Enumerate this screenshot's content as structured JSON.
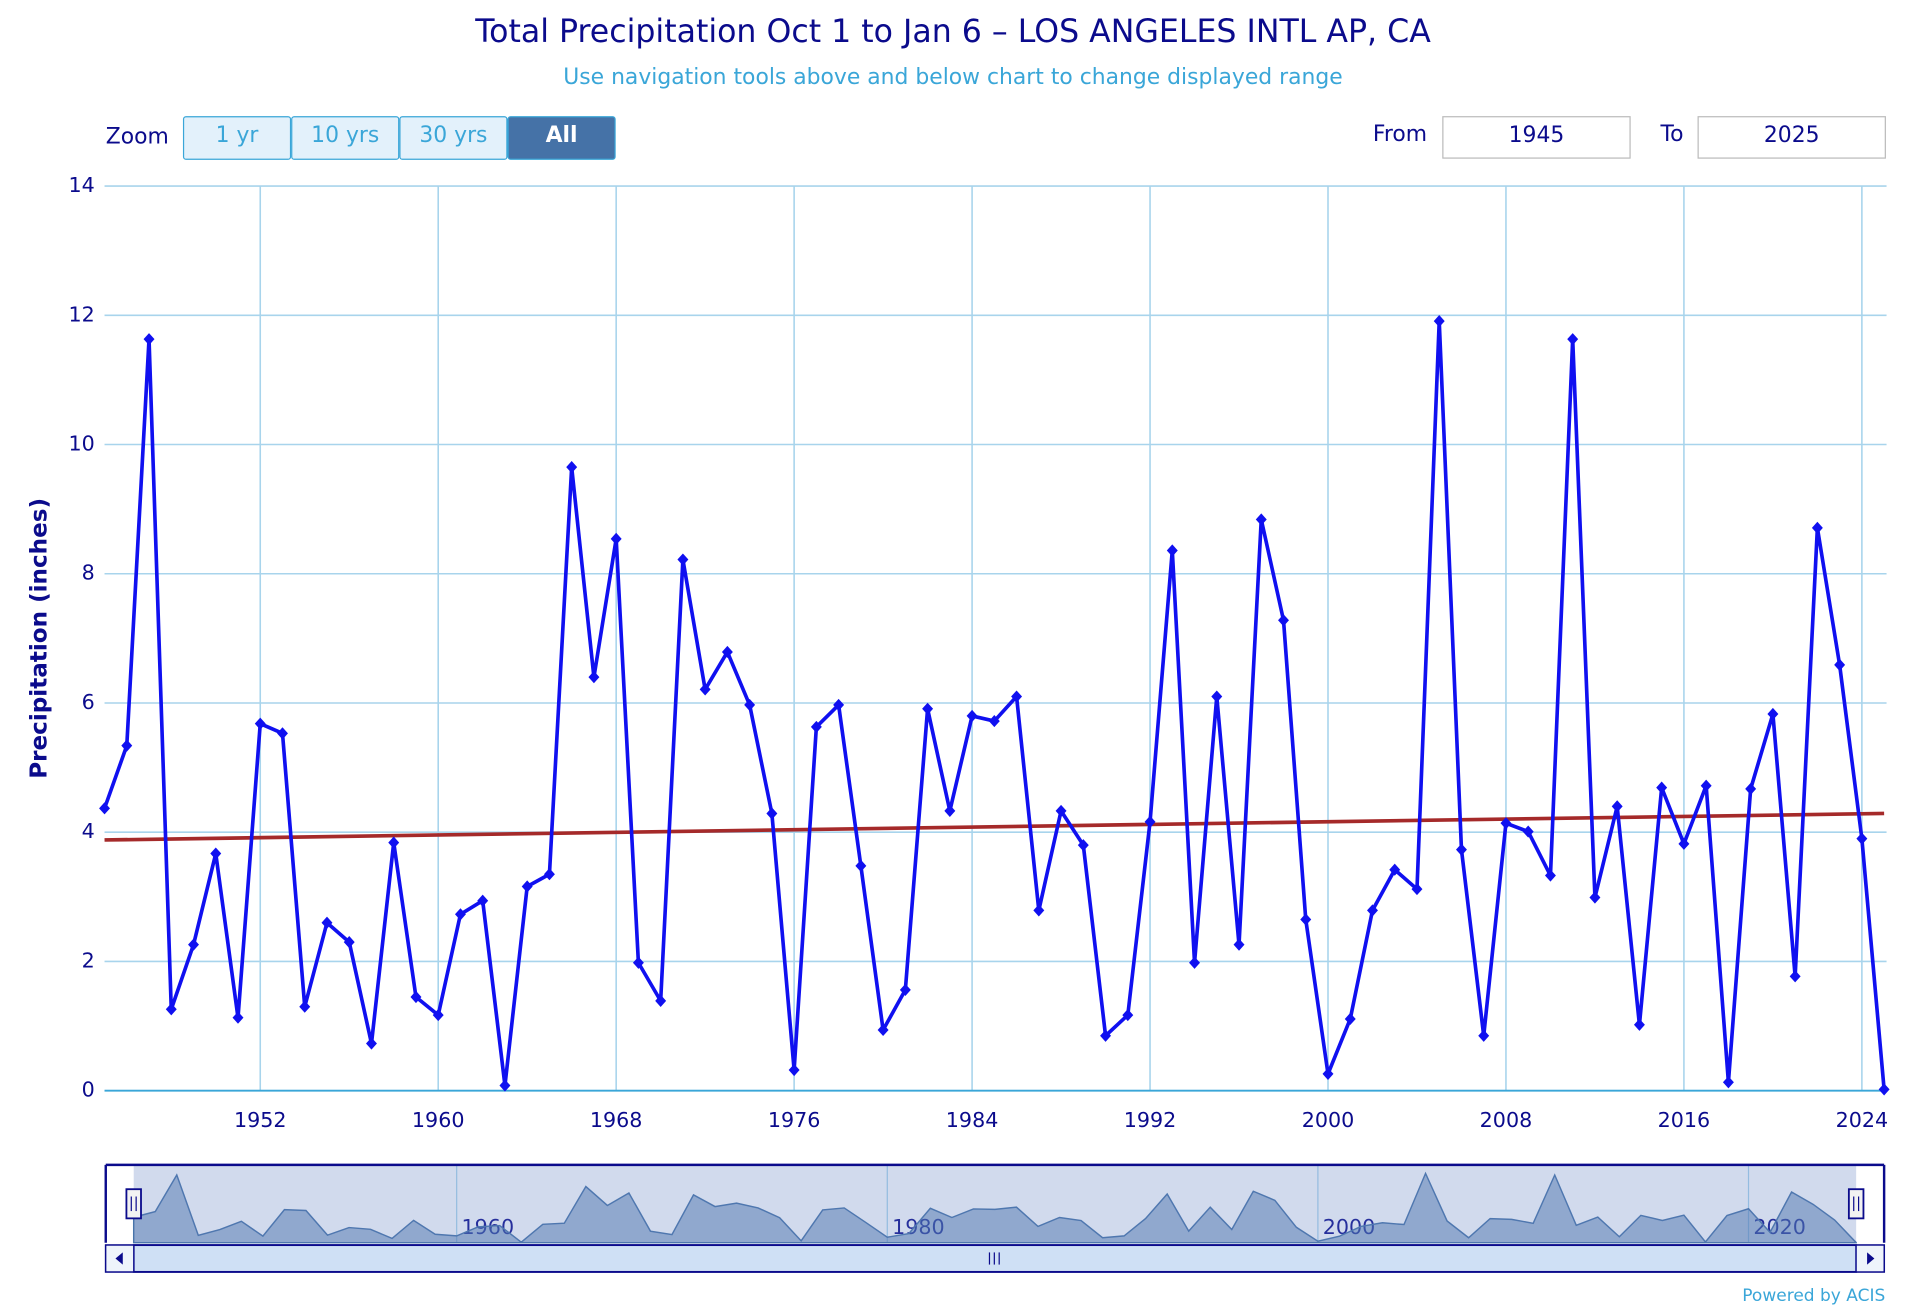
{
  "chart_data": {
    "type": "line",
    "title": "Total Precipitation Oct 1 to Jan 6 – LOS ANGELES INTL AP, CA",
    "subtitle": "Use navigation tools above and below chart to change displayed range",
    "y_label": "Precipitation (inches)",
    "x": [
      1945,
      1946,
      1947,
      1948,
      1949,
      1950,
      1951,
      1952,
      1953,
      1954,
      1955,
      1956,
      1957,
      1958,
      1959,
      1960,
      1961,
      1962,
      1963,
      1964,
      1965,
      1966,
      1967,
      1968,
      1969,
      1970,
      1971,
      1972,
      1973,
      1974,
      1975,
      1976,
      1977,
      1978,
      1979,
      1980,
      1981,
      1982,
      1983,
      1984,
      1985,
      1986,
      1987,
      1988,
      1989,
      1990,
      1991,
      1992,
      1993,
      1994,
      1995,
      1996,
      1997,
      1998,
      1999,
      2000,
      2001,
      2002,
      2003,
      2004,
      2005,
      2006,
      2007,
      2008,
      2009,
      2010,
      2011,
      2012,
      2013,
      2014,
      2015,
      2016,
      2017,
      2018,
      2019,
      2020,
      2021,
      2022,
      2023,
      2024,
      2025
    ],
    "series": [
      {
        "color": "#1010f0",
        "values": [
          4.37,
          5.34,
          11.63,
          1.26,
          2.26,
          3.67,
          1.13,
          5.68,
          5.53,
          1.3,
          2.6,
          2.3,
          0.73,
          3.84,
          1.45,
          1.17,
          2.73,
          2.94,
          0.08,
          3.16,
          3.35,
          9.65,
          6.4,
          8.54,
          1.98,
          1.39,
          8.22,
          6.21,
          6.79,
          5.97,
          4.29,
          0.32,
          5.63,
          5.97,
          3.48,
          0.94,
          1.56,
          5.91,
          4.33,
          5.8,
          5.72,
          6.1,
          2.79,
          4.33,
          3.8,
          0.85,
          1.17,
          4.16,
          8.36,
          1.98,
          6.1,
          2.26,
          8.84,
          7.28,
          2.65,
          0.26,
          1.11,
          2.79,
          3.42,
          3.12,
          11.91,
          3.73,
          0.85,
          4.14,
          4.01,
          3.33,
          11.63,
          2.99,
          4.4,
          1.02,
          4.69,
          3.82,
          4.72,
          0.13,
          4.67,
          5.83,
          1.77,
          8.71,
          6.59,
          3.9,
          0.02
        ]
      }
    ],
    "trend": {
      "color": "#a52a2a",
      "x": [
        1945,
        2025
      ],
      "values": [
        3.88,
        4.29
      ]
    },
    "xlim": [
      1945,
      2025
    ],
    "xticks": [
      1952,
      1960,
      1968,
      1976,
      1984,
      1992,
      2000,
      2008,
      2016,
      2024
    ],
    "ylim": [
      0,
      14
    ],
    "yticks": [
      0,
      2,
      4,
      6,
      8,
      10,
      12,
      14
    ],
    "grid": true,
    "navigator": {
      "xticks": [
        1960,
        1980,
        2000,
        2020
      ]
    }
  },
  "controls": {
    "zoom_label": "Zoom",
    "zoom_buttons": [
      "1 yr",
      "10 yrs",
      "30 yrs",
      "All"
    ],
    "active_button": 3,
    "from_label": "From",
    "from_value": "1945",
    "to_label": "To",
    "to_value": "2025"
  },
  "footer": "Powered by ACIS"
}
